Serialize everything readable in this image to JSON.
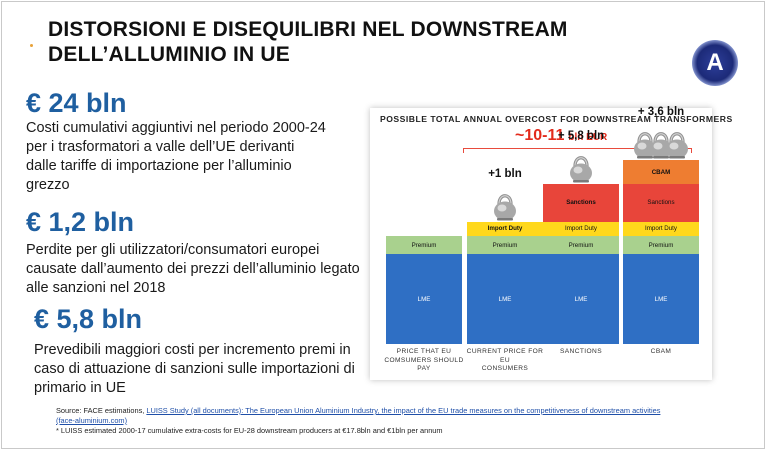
{
  "slide": {
    "title_line1": "DISTORSIONI E DISEQUILIBRI  NEL DOWNSTREAM",
    "title_line2": "DELL’ALLUMINIO IN UE",
    "logo_letter": "A"
  },
  "facts": [
    {
      "value": "€ 24 bln",
      "lines": [
        "Costi cumulativi aggiuntivi nel periodo  2000-24",
        "per i trasformatori  a valle dell’UE derivanti",
        "dalle tariffe di importazione per l’alluminio",
        "grezzo"
      ]
    },
    {
      "value": "€ 1,2 bln",
      "lines": [
        "Perdite per gli utilizzatori/consumatori europei",
        "causate dall’aumento dei prezzi dell’alluminio legato",
        "alle sanzioni nel 2018"
      ]
    },
    {
      "value": "€ 5,8 bln",
      "lines": [
        "Prevedibili maggiori costi per incremento premi in",
        "caso di attuazione di sanzioni sulle importazioni di",
        "primario in UE"
      ]
    }
  ],
  "chart_data": {
    "type": "bar",
    "title": "POSSIBLE TOTAL ANNUAL OVERCOST FOR DOWNSTREAM TRANSFORMERS",
    "total_label": "~10-11",
    "total_unit": "bln EUR",
    "categories": [
      {
        "lines": [
          "PRICE THAT EU",
          "COMSUMERS SHOULD",
          "PAY"
        ]
      },
      {
        "lines": [
          "CURRENT PRICE FOR EU",
          "CONSUMERS"
        ]
      },
      {
        "lines": [
          "SANCTIONS"
        ]
      },
      {
        "lines": [
          "CBAM"
        ]
      }
    ],
    "increments": [
      "",
      "+1 bln",
      "+ 5,8 bln",
      "+ 3,6 bln"
    ],
    "kettlebells": [
      0,
      1,
      1,
      3
    ],
    "stack_order": [
      "LME",
      "Premium",
      "Import Duty",
      "Sanctions",
      "CBAM"
    ],
    "series": [
      {
        "name": "LME",
        "color": "#2f6fc4",
        "values": [
          5,
          5,
          5,
          5
        ]
      },
      {
        "name": "Premium",
        "color": "#a9d18e",
        "values": [
          1,
          1,
          1,
          1
        ]
      },
      {
        "name": "Import Duty",
        "color": "#ffd81c",
        "values": [
          0,
          0.8,
          0.8,
          0.8
        ]
      },
      {
        "name": "Sanctions",
        "color": "#e8453a",
        "values": [
          0,
          0,
          2.1,
          2.1
        ]
      },
      {
        "name": "CBAM",
        "color": "#ee7d31",
        "values": [
          0,
          0,
          0,
          1.3
        ]
      }
    ]
  },
  "source": {
    "line1_prefix": "Source: FACE estimations, ",
    "line1_link": "LUISS Study (all documents): The European Union Aluminium Industry, the impact of the EU trade measures on the competitiveness of downstream activities",
    "line2_link": "(face-aluminium.com)",
    "line3": "* LUISS estimated 2000-17 cumulative extra-costs for EU-28 downstream producers at €17.8bln and €1bln per annum"
  }
}
